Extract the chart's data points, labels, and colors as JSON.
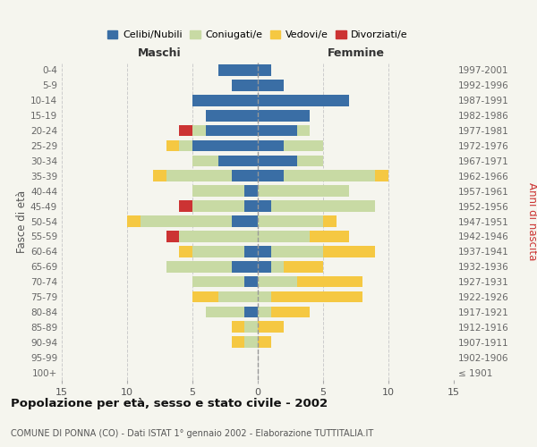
{
  "age_groups": [
    "0-4",
    "5-9",
    "10-14",
    "15-19",
    "20-24",
    "25-29",
    "30-34",
    "35-39",
    "40-44",
    "45-49",
    "50-54",
    "55-59",
    "60-64",
    "65-69",
    "70-74",
    "75-79",
    "80-84",
    "85-89",
    "90-94",
    "95-99",
    "100+"
  ],
  "birth_years": [
    "1997-2001",
    "1992-1996",
    "1987-1991",
    "1982-1986",
    "1977-1981",
    "1972-1976",
    "1967-1971",
    "1962-1966",
    "1957-1961",
    "1952-1956",
    "1947-1951",
    "1942-1946",
    "1937-1941",
    "1932-1936",
    "1927-1931",
    "1922-1926",
    "1917-1921",
    "1912-1916",
    "1907-1911",
    "1902-1906",
    "≤ 1901"
  ],
  "maschi": {
    "celibi": [
      3,
      2,
      5,
      4,
      4,
      5,
      3,
      2,
      1,
      1,
      2,
      0,
      1,
      2,
      1,
      0,
      1,
      0,
      0,
      0,
      0
    ],
    "coniugati": [
      0,
      0,
      0,
      0,
      1,
      1,
      2,
      5,
      4,
      4,
      7,
      6,
      4,
      5,
      4,
      3,
      3,
      1,
      1,
      0,
      0
    ],
    "vedovi": [
      0,
      0,
      0,
      0,
      0,
      1,
      0,
      1,
      0,
      0,
      1,
      0,
      1,
      0,
      0,
      2,
      0,
      1,
      1,
      0,
      0
    ],
    "divorziati": [
      0,
      0,
      0,
      0,
      1,
      0,
      0,
      0,
      0,
      1,
      0,
      1,
      0,
      0,
      0,
      0,
      0,
      0,
      0,
      0,
      0
    ]
  },
  "femmine": {
    "nubili": [
      1,
      2,
      7,
      4,
      3,
      2,
      3,
      2,
      0,
      1,
      0,
      0,
      1,
      1,
      0,
      0,
      0,
      0,
      0,
      0,
      0
    ],
    "coniugate": [
      0,
      0,
      0,
      0,
      1,
      3,
      2,
      7,
      7,
      8,
      5,
      4,
      4,
      1,
      3,
      1,
      1,
      0,
      0,
      0,
      0
    ],
    "vedove": [
      0,
      0,
      0,
      0,
      0,
      0,
      0,
      1,
      0,
      0,
      1,
      3,
      4,
      3,
      5,
      7,
      3,
      2,
      1,
      0,
      0
    ],
    "divorziate": [
      0,
      0,
      0,
      0,
      0,
      0,
      0,
      0,
      0,
      0,
      0,
      0,
      0,
      0,
      0,
      0,
      0,
      0,
      0,
      0,
      0
    ]
  },
  "colors": {
    "celibi_nubili": "#3a6ea5",
    "coniugati": "#c8daa4",
    "vedovi": "#f5c842",
    "divorziati": "#cc3333"
  },
  "xlim": 15,
  "title": "Popolazione per età, sesso e stato civile - 2002",
  "subtitle": "COMUNE DI PONNA (CO) - Dati ISTAT 1° gennaio 2002 - Elaborazione TUTTITALIA.IT",
  "ylabel_left": "Fasce di età",
  "ylabel_right": "Anni di nascita",
  "xlabel_maschi": "Maschi",
  "xlabel_femmine": "Femmine",
  "bg_color": "#f5f5ee"
}
